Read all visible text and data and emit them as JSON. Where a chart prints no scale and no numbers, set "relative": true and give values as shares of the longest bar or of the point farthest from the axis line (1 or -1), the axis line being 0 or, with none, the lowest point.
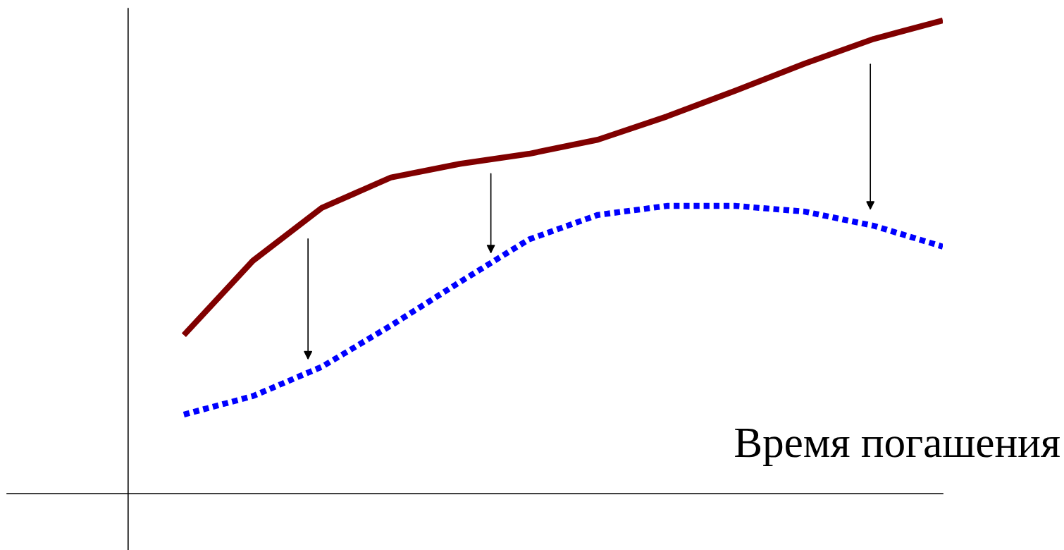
{
  "chart_data": {
    "type": "line",
    "relative": true,
    "xlabel": "Время погашения",
    "categories": [
      null,
      null,
      null,
      null,
      null,
      null,
      null,
      null,
      null,
      null,
      null,
      null
    ],
    "grid": false,
    "marker": "none",
    "series": [
      {
        "color": "#800000",
        "line_style": "solid",
        "values": [
          0.335,
          0.492,
          0.604,
          0.668,
          0.697,
          0.718,
          0.748,
          0.797,
          0.852,
          0.909,
          0.961,
          1.0
        ]
      },
      {
        "color": "#0000ff",
        "line_style": "dotted",
        "values": [
          0.167,
          0.206,
          0.268,
          0.355,
          0.447,
          0.537,
          0.589,
          0.608,
          0.608,
          0.596,
          0.566,
          0.522
        ]
      }
    ]
  }
}
